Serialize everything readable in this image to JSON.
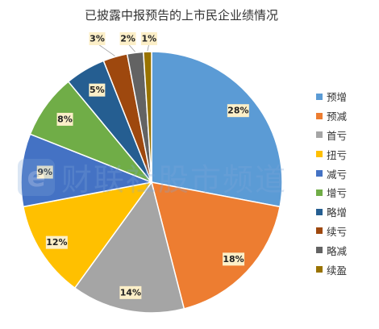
{
  "chart_data": {
    "type": "pie",
    "title": "已披露中报预告的上市民企业绩情况",
    "legend_position": "right",
    "slices": [
      {
        "name": "预增",
        "value": 28,
        "label": "28%",
        "color": "#5b9bd5"
      },
      {
        "name": "预减",
        "value": 18,
        "label": "18%",
        "color": "#ed7d31"
      },
      {
        "name": "首亏",
        "value": 14,
        "label": "14%",
        "color": "#a5a5a5"
      },
      {
        "name": "扭亏",
        "value": 12,
        "label": "12%",
        "color": "#ffc000"
      },
      {
        "name": "减亏",
        "value": 9,
        "label": "9%",
        "color": "#4472c4"
      },
      {
        "name": "增亏",
        "value": 8,
        "label": "8%",
        "color": "#70ad47"
      },
      {
        "name": "略增",
        "value": 5,
        "label": "5%",
        "color": "#255e91"
      },
      {
        "name": "续亏",
        "value": 3,
        "label": "3%",
        "color": "#9e480e"
      },
      {
        "name": "略减",
        "value": 2,
        "label": "2%",
        "color": "#636363"
      },
      {
        "name": "续盈",
        "value": 1,
        "label": "1%",
        "color": "#997300"
      }
    ]
  },
  "watermark": {
    "logo_letter": "e",
    "text": "财联社股市频道"
  }
}
